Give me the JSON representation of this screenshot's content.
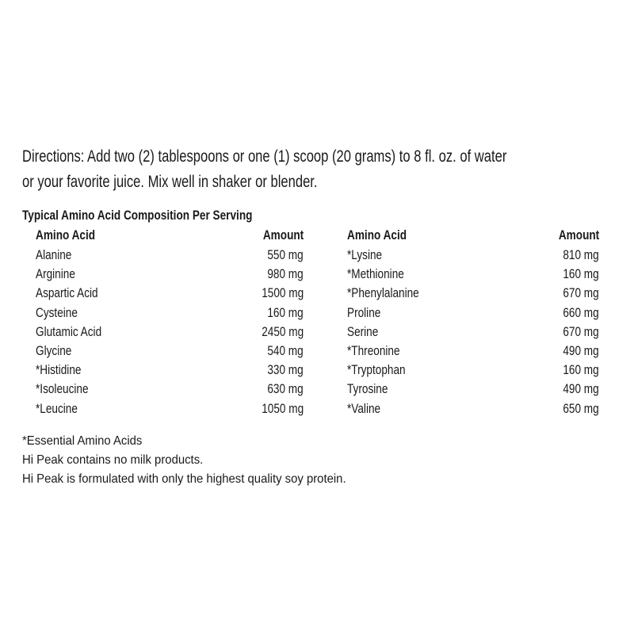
{
  "directions": {
    "line1": "Directions:  Add two (2) tablespoons or one (1) scoop (20 grams) to 8 fl. oz. of water",
    "line2": "or your favorite juice.  Mix well in shaker or blender."
  },
  "table": {
    "title": "Typical Amino Acid Composition Per Serving",
    "headers": {
      "name": "Amino Acid",
      "amount": "Amount"
    },
    "left": [
      {
        "name": "Alanine",
        "amount": "550 mg"
      },
      {
        "name": "Arginine",
        "amount": "980 mg"
      },
      {
        "name": "Aspartic Acid",
        "amount": "1500 mg"
      },
      {
        "name": "Cysteine",
        "amount": "160 mg"
      },
      {
        "name": "Glutamic Acid",
        "amount": "2450 mg"
      },
      {
        "name": "Glycine",
        "amount": "540 mg"
      },
      {
        "name": "*Histidine",
        "amount": "330 mg"
      },
      {
        "name": "*Isoleucine",
        "amount": "630 mg"
      },
      {
        "name": "*Leucine",
        "amount": "1050 mg"
      }
    ],
    "right": [
      {
        "name": "*Lysine",
        "amount": "810 mg"
      },
      {
        "name": "*Methionine",
        "amount": "160 mg"
      },
      {
        "name": "*Phenylalanine",
        "amount": "670 mg"
      },
      {
        "name": "Proline",
        "amount": "660 mg"
      },
      {
        "name": "Serine",
        "amount": "670 mg"
      },
      {
        "name": "*Threonine",
        "amount": "490 mg"
      },
      {
        "name": "*Tryptophan",
        "amount": "160 mg"
      },
      {
        "name": "Tyrosine",
        "amount": "490 mg"
      },
      {
        "name": "*Valine",
        "amount": "650 mg"
      }
    ]
  },
  "notes": [
    "*Essential Amino Acids",
    "Hi Peak contains no milk products.",
    "Hi Peak is formulated with only the highest quality soy protein."
  ]
}
